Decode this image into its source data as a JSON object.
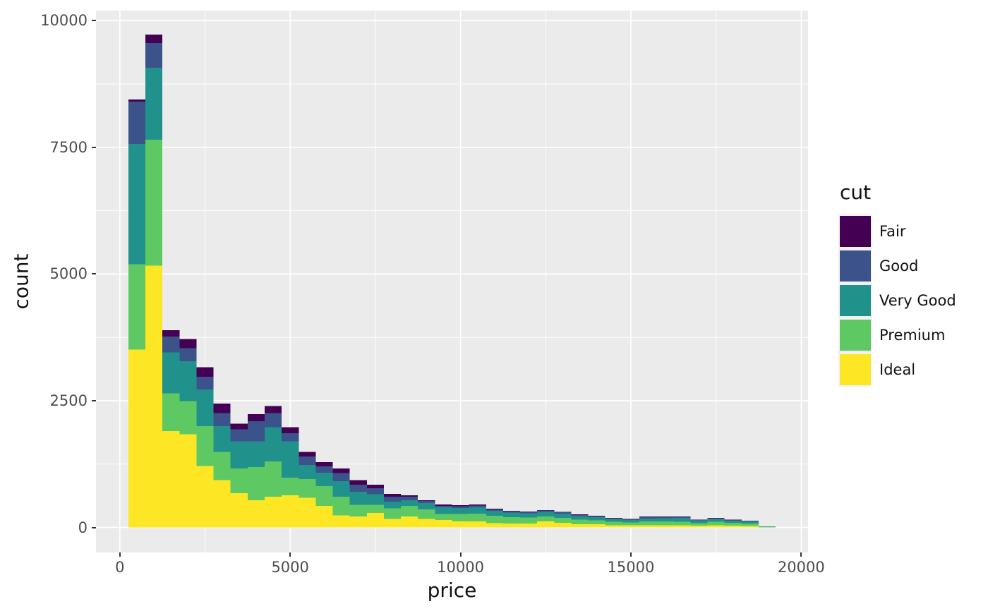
{
  "chart_data": {
    "type": "bar",
    "subtype": "stacked-histogram",
    "title": "",
    "xlabel": "price",
    "ylabel": "count",
    "legend_title": "cut",
    "legend_position": "right",
    "panel_bg": "#EBEBEB",
    "grid_color": "#FFFFFF",
    "tick_color": "#333333",
    "tick_label_color": "#4D4D4D",
    "axis_title_color": "#111111",
    "x_domain": [
      -700,
      20200
    ],
    "y_domain": [
      -494,
      10198
    ],
    "x_ticks": [
      0,
      5000,
      10000,
      15000,
      20000
    ],
    "y_ticks": [
      0,
      2500,
      5000,
      7500,
      10000
    ],
    "x_minor_ticks": [
      2500,
      7500,
      12500,
      17500
    ],
    "y_minor_ticks": [
      1250,
      3750,
      6250,
      8750
    ],
    "binwidth": 500,
    "series_keys": [
      "Fair",
      "Good",
      "Very Good",
      "Premium",
      "Ideal"
    ],
    "colors": {
      "Fair": "#440154",
      "Good": "#3B528B",
      "Very Good": "#21918C",
      "Premium": "#5EC962",
      "Ideal": "#FDE725"
    },
    "stack_order_bottom_to_top": [
      "Ideal",
      "Premium",
      "Very Good",
      "Good",
      "Fair"
    ],
    "bins": [
      {
        "x0": 250,
        "counts": [
          46,
          835,
          2370,
          1685,
          3510
        ]
      },
      {
        "x0": 750,
        "counts": [
          167,
          488,
          1420,
          2480,
          5167
        ]
      },
      {
        "x0": 1250,
        "counts": [
          126,
          315,
          808,
          743,
          1899
        ]
      },
      {
        "x0": 1750,
        "counts": [
          186,
          256,
          788,
          650,
          1839
        ]
      },
      {
        "x0": 2250,
        "counts": [
          186,
          256,
          719,
          789,
          1212
        ]
      },
      {
        "x0": 2750,
        "counts": [
          186,
          255,
          511,
          557,
          933
        ]
      },
      {
        "x0": 3250,
        "counts": [
          115,
          233,
          533,
          488,
          678
        ]
      },
      {
        "x0": 3750,
        "counts": [
          139,
          395,
          511,
          649,
          539
        ]
      },
      {
        "x0": 4250,
        "counts": [
          140,
          278,
          673,
          696,
          609
        ]
      },
      {
        "x0": 4750,
        "counts": [
          116,
          163,
          720,
          348,
          631
        ]
      },
      {
        "x0": 5250,
        "counts": [
          93,
          162,
          278,
          372,
          585
        ]
      },
      {
        "x0": 5750,
        "counts": [
          89,
          120,
          264,
          396,
          422
        ]
      },
      {
        "x0": 6250,
        "counts": [
          94,
          162,
          301,
          372,
          237
        ]
      },
      {
        "x0": 6750,
        "counts": [
          93,
          139,
          255,
          233,
          213
        ]
      },
      {
        "x0": 7250,
        "counts": [
          70,
          115,
          209,
          163,
          283
        ]
      },
      {
        "x0": 7750,
        "counts": [
          55,
          103,
          130,
          209,
          167
        ]
      },
      {
        "x0": 8250,
        "counts": [
          22,
          70,
          117,
          209,
          213
        ]
      },
      {
        "x0": 8750,
        "counts": [
          14,
          42,
          131,
          185,
          167
        ]
      },
      {
        "x0": 9250,
        "counts": [
          28,
          30,
          130,
          124,
          143
        ]
      },
      {
        "x0": 9750,
        "counts": [
          15,
          35,
          120,
          146,
          120
        ]
      },
      {
        "x0": 10250,
        "counts": [
          20,
          40,
          125,
          150,
          120
        ]
      },
      {
        "x0": 10750,
        "counts": [
          15,
          30,
          100,
          140,
          87
        ]
      },
      {
        "x0": 11250,
        "counts": [
          12,
          28,
          90,
          120,
          80
        ]
      },
      {
        "x0": 11750,
        "counts": [
          12,
          25,
          85,
          115,
          79
        ]
      },
      {
        "x0": 12250,
        "counts": [
          8,
          30,
          93,
          92,
          121
        ]
      },
      {
        "x0": 12750,
        "counts": [
          6,
          25,
          88,
          97,
          90
        ]
      },
      {
        "x0": 13250,
        "counts": [
          15,
          20,
          75,
          85,
          65
        ]
      },
      {
        "x0": 13750,
        "counts": [
          10,
          18,
          65,
          80,
          60
        ]
      },
      {
        "x0": 14250,
        "counts": [
          10,
          15,
          55,
          66,
          45
        ]
      },
      {
        "x0": 14750,
        "counts": [
          6,
          12,
          48,
          61,
          40
        ]
      },
      {
        "x0": 15250,
        "counts": [
          6,
          30,
          60,
          72,
          45
        ]
      },
      {
        "x0": 15750,
        "counts": [
          5,
          28,
          60,
          75,
          45
        ]
      },
      {
        "x0": 16250,
        "counts": [
          3,
          20,
          80,
          65,
          45
        ]
      },
      {
        "x0": 16750,
        "counts": [
          6,
          10,
          55,
          50,
          32
        ]
      },
      {
        "x0": 17250,
        "counts": [
          10,
          15,
          55,
          66,
          45
        ]
      },
      {
        "x0": 17750,
        "counts": [
          8,
          12,
          45,
          55,
          33
        ]
      },
      {
        "x0": 18250,
        "counts": [
          5,
          10,
          40,
          55,
          25
        ]
      },
      {
        "x0": 18750,
        "counts": [
          0,
          2,
          5,
          10,
          3
        ]
      }
    ]
  }
}
